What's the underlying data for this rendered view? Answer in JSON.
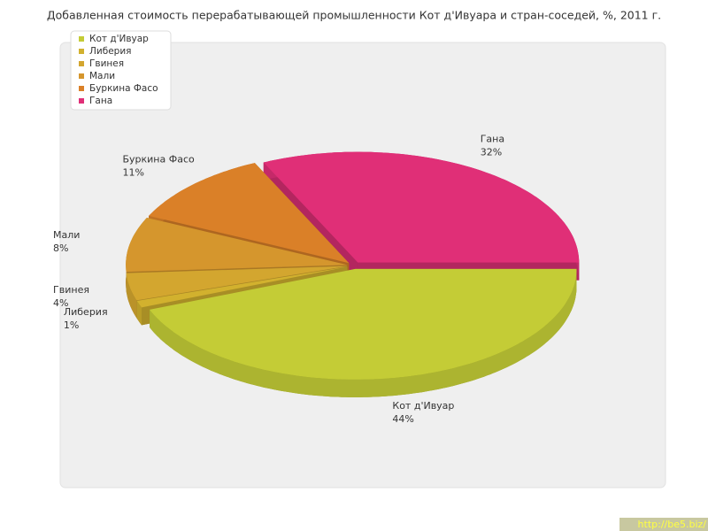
{
  "chart_data": {
    "type": "pie",
    "title": "Добавленная стоимость перерабатывающей промышленности Кот д'Ивуара и стран-соседей, %, 2011 г.",
    "categories": [
      "Кот д'Ивуар",
      "Либерия",
      "Гвинея",
      "Мали",
      "Буркина Фасо",
      "Гана"
    ],
    "values": [
      44,
      1,
      4,
      8,
      11,
      32
    ],
    "value_labels": [
      "44%",
      "1%",
      "4%",
      "8%",
      "11%",
      "32%"
    ],
    "colors": [
      "#c4cc36",
      "#d2b12e",
      "#d3a62f",
      "#d5962d",
      "#da8028",
      "#e02f77"
    ],
    "legend": "upper left",
    "watermark": "http://be5.biz/"
  }
}
